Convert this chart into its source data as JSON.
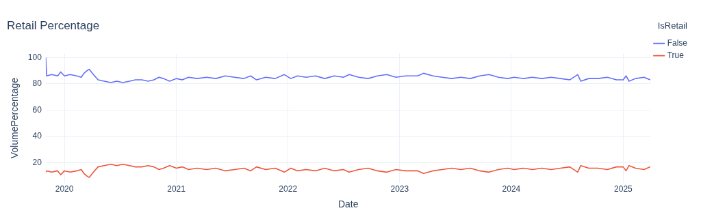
{
  "chart_data": {
    "type": "line",
    "title": "Retail Percentage",
    "xlabel": "Date",
    "ylabel": "VolumePercentage",
    "legend_title": "IsRetail",
    "legend": "right",
    "grid": true,
    "marker": "none",
    "line_style": "solid",
    "x": [
      "2019-11-01",
      "2019-11-04",
      "2019-11-20",
      "2019-12-10",
      "2019-12-20",
      "2020-01-01",
      "2020-01-20",
      "2020-02-10",
      "2020-02-25",
      "2020-03-05",
      "2020-03-15",
      "2020-03-22",
      "2020-04-05",
      "2020-04-20",
      "2020-05-10",
      "2020-06-01",
      "2020-06-20",
      "2020-07-10",
      "2020-08-01",
      "2020-08-20",
      "2020-09-10",
      "2020-10-01",
      "2020-10-20",
      "2020-11-05",
      "2020-11-20",
      "2020-12-10",
      "2021-01-01",
      "2021-01-20",
      "2021-02-10",
      "2021-03-10",
      "2021-04-10",
      "2021-05-10",
      "2021-06-10",
      "2021-07-10",
      "2021-08-10",
      "2021-09-01",
      "2021-09-20",
      "2021-10-20",
      "2021-11-20",
      "2021-12-20",
      "2022-01-10",
      "2022-02-01",
      "2022-03-01",
      "2022-04-01",
      "2022-05-01",
      "2022-06-01",
      "2022-07-01",
      "2022-07-20",
      "2022-08-20",
      "2022-09-20",
      "2022-10-20",
      "2022-11-20",
      "2022-12-20",
      "2023-01-20",
      "2023-03-01",
      "2023-03-20",
      "2023-04-20",
      "2023-05-20",
      "2023-06-20",
      "2023-07-20",
      "2023-08-20",
      "2023-09-20",
      "2023-10-20",
      "2023-11-20",
      "2023-12-20",
      "2024-01-10",
      "2024-02-10",
      "2024-03-10",
      "2024-04-10",
      "2024-05-10",
      "2024-06-10",
      "2024-07-10",
      "2024-08-05",
      "2024-08-15",
      "2024-09-10",
      "2024-10-10",
      "2024-11-10",
      "2024-12-10",
      "2025-01-01",
      "2025-01-10",
      "2025-01-20",
      "2025-02-10",
      "2025-03-10",
      "2025-03-30"
    ],
    "xlim": [
      "2019-11-01",
      "2025-04-01"
    ],
    "xticks": [
      "2020",
      "2021",
      "2022",
      "2023",
      "2024",
      "2025"
    ],
    "ylim": [
      5,
      103
    ],
    "yticks": [
      20,
      40,
      60,
      80,
      100
    ],
    "series": [
      {
        "name": "False",
        "color": "#636efa",
        "values": [
          100,
          86,
          87,
          86,
          89,
          86,
          87,
          86,
          85,
          88,
          90,
          91,
          87,
          83,
          82,
          81,
          82,
          81,
          82,
          83,
          83,
          82,
          83,
          85,
          84,
          82,
          84,
          83,
          85,
          84,
          85,
          84,
          86,
          85,
          84,
          86,
          83,
          85,
          84,
          87,
          84,
          86,
          85,
          86,
          84,
          86,
          85,
          87,
          85,
          84,
          86,
          87,
          85,
          86,
          86,
          88,
          86,
          85,
          84,
          85,
          84,
          86,
          87,
          85,
          84,
          85,
          84,
          85,
          84,
          85,
          84,
          83,
          87,
          82,
          84,
          84,
          85,
          83,
          83,
          86,
          82,
          84,
          85,
          83
        ]
      },
      {
        "name": "True",
        "color": "#ef553b",
        "values": [
          13,
          14,
          13,
          14,
          11,
          14,
          13,
          14,
          15,
          12,
          10,
          9,
          13,
          17,
          18,
          19,
          18,
          19,
          18,
          17,
          17,
          18,
          17,
          15,
          16,
          18,
          16,
          17,
          15,
          16,
          15,
          16,
          14,
          15,
          16,
          14,
          17,
          15,
          16,
          13,
          16,
          14,
          15,
          14,
          16,
          14,
          15,
          13,
          15,
          16,
          14,
          13,
          15,
          14,
          14,
          12,
          14,
          15,
          16,
          15,
          16,
          14,
          13,
          15,
          16,
          15,
          16,
          15,
          16,
          15,
          16,
          17,
          13,
          18,
          16,
          16,
          15,
          17,
          17,
          14,
          18,
          16,
          15,
          17
        ]
      }
    ]
  }
}
